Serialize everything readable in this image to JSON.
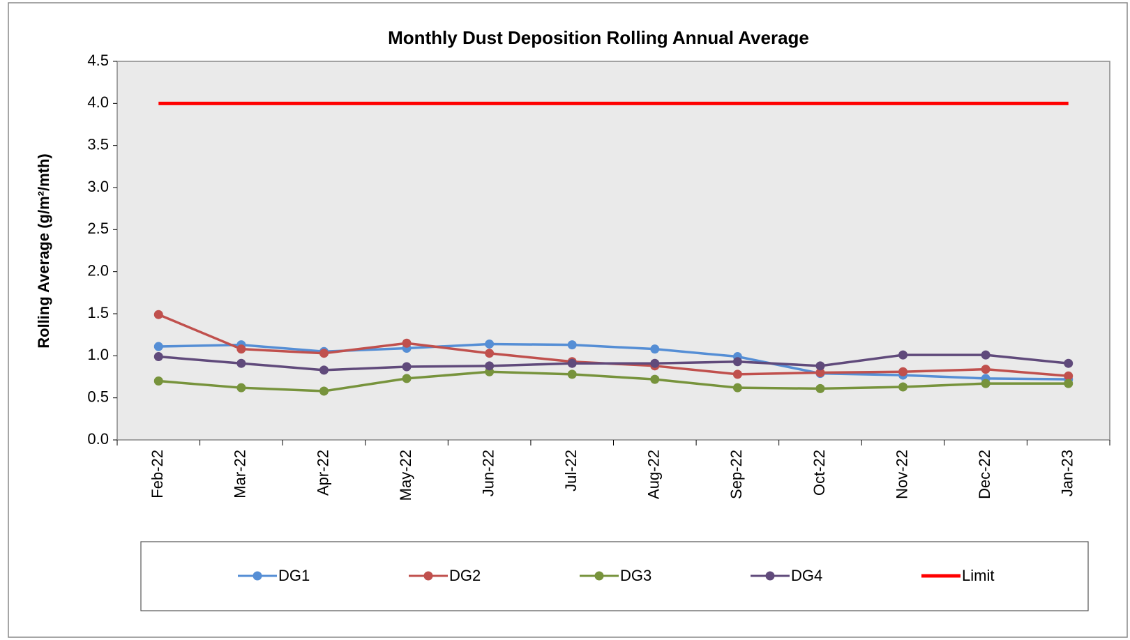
{
  "chart_data": {
    "type": "line",
    "title": "Monthly Dust Deposition Rolling Annual Average",
    "y_label": "Rolling Average (g/m²/mth)",
    "categories": [
      "Feb-22",
      "Mar-22",
      "Apr-22",
      "May-22",
      "Jun-22",
      "Jul-22",
      "Aug-22",
      "Sep-22",
      "Oct-22",
      "Nov-22",
      "Dec-22",
      "Jan-23"
    ],
    "series": [
      {
        "name": "DG1",
        "color": "#558ed5",
        "marker": true,
        "values": [
          1.11,
          1.13,
          1.05,
          1.09,
          1.14,
          1.13,
          1.08,
          0.99,
          0.79,
          0.77,
          0.73,
          0.72
        ]
      },
      {
        "name": "DG2",
        "color": "#c0504d",
        "marker": true,
        "values": [
          1.49,
          1.08,
          1.03,
          1.15,
          1.03,
          0.93,
          0.88,
          0.78,
          0.8,
          0.81,
          0.84,
          0.76
        ]
      },
      {
        "name": "DG3",
        "color": "#77933c",
        "marker": true,
        "values": [
          0.7,
          0.62,
          0.58,
          0.73,
          0.81,
          0.78,
          0.72,
          0.62,
          0.61,
          0.63,
          0.67,
          0.67
        ]
      },
      {
        "name": "DG4",
        "color": "#604a7b",
        "marker": true,
        "values": [
          0.99,
          0.91,
          0.83,
          0.87,
          0.88,
          0.91,
          0.91,
          0.93,
          0.88,
          1.01,
          1.01,
          0.91
        ]
      },
      {
        "name": "Limit",
        "color": "#ff0000",
        "marker": false,
        "values": [
          4,
          4,
          4,
          4,
          4,
          4,
          4,
          4,
          4,
          4,
          4,
          4
        ]
      }
    ],
    "ylim": [
      0,
      4.5
    ],
    "yticks": [
      {
        "value": 0,
        "label": "0.0"
      },
      0.5,
      {
        "value": 1,
        "label": "1.0"
      },
      1.5,
      {
        "value": 2,
        "label": "2.0"
      },
      2.5,
      {
        "value": 3,
        "label": "3.0"
      },
      3.5,
      {
        "value": 4,
        "label": "4.0"
      },
      4.5
    ],
    "legend": "bottom"
  }
}
